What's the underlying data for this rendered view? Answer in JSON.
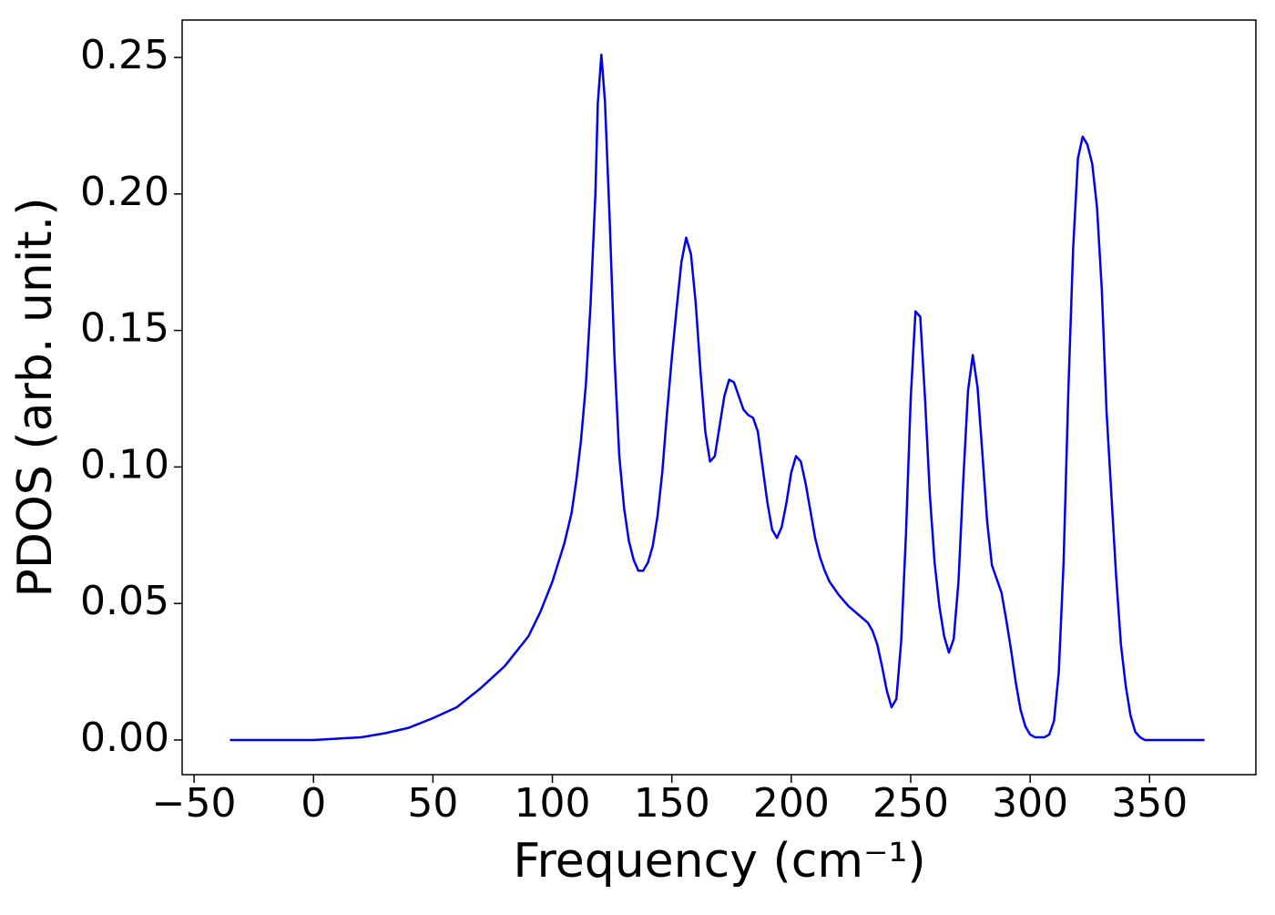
{
  "chart_data": {
    "type": "line",
    "xlabel": "Frequency (cm⁻¹)",
    "ylabel": "PDOS (arb. unit.)",
    "xlim": [
      -55,
      394.5
    ],
    "ylim": [
      -0.0127,
      0.2637
    ],
    "xticks": [
      {
        "value": -50,
        "label": "−50"
      },
      0,
      50,
      100,
      150,
      200,
      250,
      300,
      350
    ],
    "yticks": [
      {
        "value": 0,
        "label": "0.00"
      },
      0.05,
      {
        "value": 0.1,
        "label": "0.10"
      },
      0.15,
      {
        "value": 0.2,
        "label": "0.20"
      },
      0.25
    ],
    "grid": false,
    "series": [
      {
        "color": "#0000ee",
        "x": [
          -35,
          -20,
          0,
          10,
          20,
          30,
          40,
          50,
          60,
          70,
          80,
          90,
          95,
          100,
          105,
          108,
          110,
          112,
          114,
          116,
          118,
          119,
          120.5,
          122,
          124,
          126,
          128,
          130,
          132,
          134,
          136,
          138,
          140,
          142,
          144,
          146,
          148,
          150,
          152,
          154,
          156,
          158,
          160,
          162,
          164,
          166,
          168,
          170,
          172,
          174,
          176,
          178,
          180,
          182,
          184,
          186,
          188,
          190,
          192,
          194,
          196,
          198,
          200,
          202,
          204,
          206,
          208,
          210,
          212,
          214,
          216,
          220,
          224,
          228,
          232,
          234,
          236,
          238,
          240,
          242,
          244,
          246,
          248,
          250,
          252,
          254,
          256,
          258,
          260,
          262,
          264,
          266,
          268,
          270,
          272,
          274,
          276,
          278,
          280,
          282,
          284,
          288,
          290,
          292,
          294,
          296,
          298,
          300,
          302,
          304,
          306,
          308,
          310,
          312,
          314,
          316,
          318,
          320,
          322,
          324,
          326,
          328,
          330,
          332,
          334,
          336,
          338,
          340,
          342,
          344,
          346,
          348,
          373
        ],
        "values": [
          0,
          0,
          0,
          0.0005,
          0.001,
          0.0025,
          0.0045,
          0.008,
          0.012,
          0.019,
          0.027,
          0.038,
          0.047,
          0.058,
          0.072,
          0.083,
          0.095,
          0.11,
          0.13,
          0.16,
          0.2,
          0.233,
          0.251,
          0.234,
          0.19,
          0.14,
          0.104,
          0.085,
          0.073,
          0.066,
          0.062,
          0.062,
          0.065,
          0.071,
          0.082,
          0.098,
          0.12,
          0.14,
          0.158,
          0.175,
          0.184,
          0.178,
          0.16,
          0.135,
          0.113,
          0.102,
          0.104,
          0.115,
          0.126,
          0.132,
          0.131,
          0.126,
          0.121,
          0.119,
          0.118,
          0.113,
          0.1,
          0.087,
          0.077,
          0.074,
          0.078,
          0.087,
          0.098,
          0.104,
          0.102,
          0.094,
          0.084,
          0.074,
          0.067,
          0.062,
          0.058,
          0.053,
          0.049,
          0.046,
          0.043,
          0.04,
          0.035,
          0.027,
          0.018,
          0.012,
          0.015,
          0.036,
          0.075,
          0.125,
          0.157,
          0.155,
          0.125,
          0.09,
          0.065,
          0.049,
          0.038,
          0.032,
          0.037,
          0.058,
          0.095,
          0.128,
          0.141,
          0.129,
          0.105,
          0.08,
          0.064,
          0.054,
          0.044,
          0.033,
          0.021,
          0.011,
          0.005,
          0.002,
          0.001,
          0.001,
          0.001,
          0.002,
          0.007,
          0.025,
          0.065,
          0.128,
          0.18,
          0.213,
          0.221,
          0.218,
          0.211,
          0.195,
          0.165,
          0.12,
          0.09,
          0.06,
          0.035,
          0.02,
          0.009,
          0.003,
          0.001,
          0,
          0
        ]
      }
    ]
  }
}
